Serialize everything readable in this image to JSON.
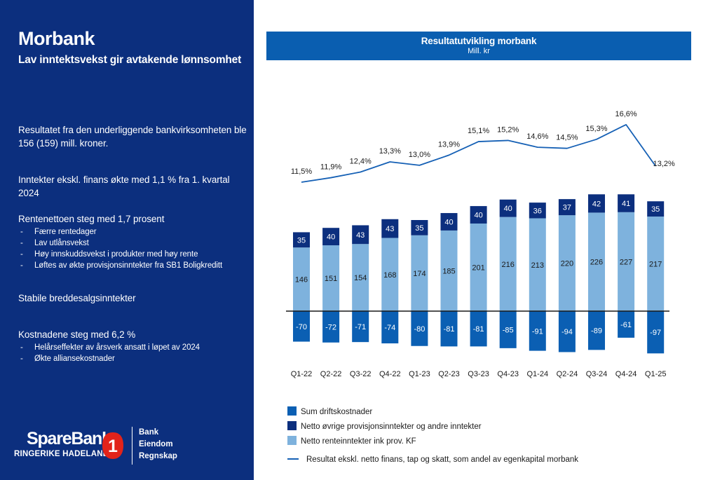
{
  "left": {
    "title": "Morbank",
    "subtitle": "Lav inntektsvekst gir avtakende lønnsomhet",
    "p1": "Resultatet fra den underliggende bankvirksomheten ble 156 (159) mill. kroner.",
    "p2": "Inntekter ekskl. finans økte med 1,1 % fra 1. kvartal 2024",
    "p3": "Rentenettoen steg med 1,7 prosent",
    "p3_bullets": [
      "Færre rentedager",
      "Lav utlånsvekst",
      "Høy innskuddsvekst i produkter med høy rente",
      "Løftes av økte provisjonsinntekter fra SB1 Boligkreditt"
    ],
    "p4": "Stabile breddesalgsinntekter",
    "p5": "Kostnadene steg med 6,2 %",
    "p5_bullets": [
      "Helårseffekter av årsverk ansatt i løpet av 2024",
      "Økte alliansekostnader"
    ]
  },
  "logo": {
    "name": "SpareBank",
    "sub": "RINGERIKE HADELAND",
    "badge_digit": "1",
    "services": [
      "Bank",
      "Eiendom",
      "Regnskap"
    ]
  },
  "chart_header": {
    "title": "Resultatutvikling morbank",
    "unit": "Mill. kr"
  },
  "colors": {
    "panel": "#0c2f7e",
    "header": "#0a5eb0",
    "net_interest": "#7eb2dd",
    "other_income": "#0c2f7e",
    "costs": "#0b5fb3",
    "line": "#1560b5",
    "logo_red": "#e2231a"
  },
  "chart_data": {
    "type": "bar",
    "stacked": true,
    "categories": [
      "Q1-22",
      "Q2-22",
      "Q3-22",
      "Q4-22",
      "Q1-23",
      "Q2-23",
      "Q3-23",
      "Q4-23",
      "Q1-24",
      "Q2-24",
      "Q3-24",
      "Q4-24",
      "Q1-25"
    ],
    "series": [
      {
        "name": "Netto renteinntekter ink prov. KF",
        "values": [
          146,
          151,
          154,
          168,
          174,
          185,
          201,
          216,
          213,
          220,
          226,
          227,
          217
        ]
      },
      {
        "name": "Netto øvrige provisjonsinntekter og andre inntekter",
        "values": [
          35,
          40,
          43,
          43,
          35,
          40,
          40,
          40,
          36,
          37,
          42,
          41,
          35
        ]
      },
      {
        "name": "Sum driftskostnader",
        "values": [
          -70,
          -72,
          -71,
          -74,
          -80,
          -81,
          -81,
          -85,
          -91,
          -94,
          -89,
          -61,
          -97
        ]
      }
    ],
    "line_series": {
      "name": "Resultat ekskl. netto finans, tap og skatt, som andel av egenkapital morbank",
      "values": [
        11.5,
        11.9,
        12.4,
        13.3,
        13.0,
        13.9,
        15.1,
        15.2,
        14.6,
        14.5,
        15.3,
        16.6,
        13.2
      ],
      "labels": [
        "11,5%",
        "11,9%",
        "12,4%",
        "13,3%",
        "13,0%",
        "13,9%",
        "15,1%",
        "15,2%",
        "14,6%",
        "14,5%",
        "15,3%",
        "16,6%",
        "13,2%"
      ]
    },
    "legend": [
      "Sum driftskostnader",
      "Netto øvrige provisjonsinntekter og andre inntekter",
      "Netto renteinntekter ink prov. KF",
      "Resultat ekskl. netto finans, tap og skatt, som andel av egenkapital morbank"
    ],
    "legend_position": "bottom",
    "grid": false
  }
}
